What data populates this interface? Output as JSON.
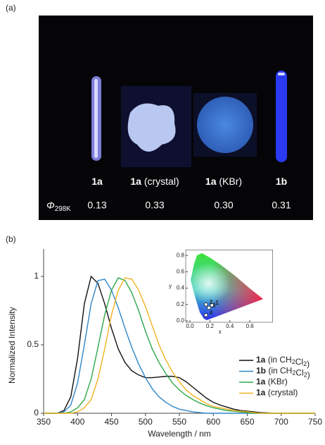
{
  "panel_a": {
    "label": "(a)",
    "samples": [
      "1a",
      "1a (crystal)",
      "1a (KBr)",
      "1b"
    ],
    "quantum_yield_label": "Φ298K",
    "quantum_yields": [
      "0.13",
      "0.33",
      "0.30",
      "0.31"
    ]
  },
  "panel_b_label": "(b)",
  "chart_data": [
    {
      "type": "line",
      "x_label": "Wavelength / nm",
      "y_label": "Normalized Intensity",
      "x": [
        350,
        360,
        370,
        380,
        390,
        400,
        410,
        420,
        430,
        440,
        450,
        460,
        470,
        480,
        490,
        500,
        510,
        520,
        530,
        540,
        550,
        560,
        570,
        580,
        590,
        600,
        610,
        620,
        630,
        640,
        650,
        660,
        670,
        680,
        690,
        700,
        710,
        720,
        730,
        740,
        750
      ],
      "xlim": [
        350,
        750
      ],
      "xticks": [
        350,
        400,
        450,
        500,
        550,
        600,
        650,
        700,
        750
      ],
      "ylim": [
        0,
        1.2
      ],
      "yticks": [
        0,
        0.5,
        1
      ],
      "series": [
        {
          "name": "1a (in CH2Cl2)",
          "color": "#111111",
          "values": [
            0,
            0,
            0,
            0.02,
            0.12,
            0.4,
            0.8,
            1,
            0.95,
            0.8,
            0.62,
            0.47,
            0.37,
            0.31,
            0.28,
            0.26,
            0.26,
            0.265,
            0.27,
            0.27,
            0.26,
            0.23,
            0.19,
            0.15,
            0.11,
            0.08,
            0.06,
            0.045,
            0.03,
            0.02,
            0.015,
            0.01,
            0.005,
            0.003,
            0,
            0,
            0,
            0,
            0,
            0,
            0
          ]
        },
        {
          "name": "1b (in CH2Cl2)",
          "color": "#2e86c8",
          "values": [
            0,
            0,
            0,
            0.01,
            0.06,
            0.22,
            0.5,
            0.8,
            0.97,
            0.98,
            0.9,
            0.77,
            0.62,
            0.48,
            0.36,
            0.26,
            0.18,
            0.12,
            0.08,
            0.05,
            0.03,
            0.02,
            0.01,
            0.005,
            0,
            0,
            0,
            0,
            0,
            0,
            0,
            0,
            0,
            0,
            0,
            0,
            0,
            0,
            0,
            0,
            0
          ]
        },
        {
          "name": "1a (KBr)",
          "color": "#2ea84a",
          "values": [
            0,
            0,
            0,
            0,
            0.01,
            0.04,
            0.1,
            0.25,
            0.48,
            0.72,
            0.9,
            0.99,
            0.97,
            0.88,
            0.75,
            0.6,
            0.47,
            0.37,
            0.29,
            0.22,
            0.17,
            0.13,
            0.1,
            0.075,
            0.055,
            0.04,
            0.03,
            0.02,
            0.015,
            0.01,
            0.005,
            0,
            0,
            0,
            0,
            0,
            0,
            0,
            0,
            0,
            0
          ]
        },
        {
          "name": "1a (crystal)",
          "color": "#f0b323",
          "values": [
            0,
            0,
            0,
            0,
            0,
            0.01,
            0.04,
            0.1,
            0.25,
            0.47,
            0.72,
            0.9,
            0.99,
            0.98,
            0.9,
            0.78,
            0.64,
            0.5,
            0.39,
            0.3,
            0.23,
            0.17,
            0.13,
            0.1,
            0.07,
            0.05,
            0.04,
            0.03,
            0.02,
            0.015,
            0.01,
            0.005,
            0,
            0,
            0,
            0,
            0,
            0,
            0,
            0,
            0
          ]
        }
      ]
    },
    {
      "type": "scatter",
      "x_label": "x",
      "y_label": "y",
      "categories": [
        "1",
        "2",
        "3",
        "4"
      ],
      "x": [
        0.22,
        0.16,
        0.19,
        0.16
      ],
      "values": [
        0.19,
        0.2,
        0.16,
        0.07
      ],
      "xlim": [
        0,
        0.8
      ],
      "ylim": [
        0,
        0.85
      ],
      "xticks": [
        {
          "value": 0,
          "label": "0.0"
        },
        {
          "value": 0.2,
          "label": "0.2"
        },
        {
          "value": 0.4,
          "label": "0.4"
        },
        {
          "value": 0.6,
          "label": "0.6"
        }
      ],
      "yticks": [
        {
          "value": 0,
          "label": "0.0"
        },
        {
          "value": 0.2,
          "label": "0.2"
        },
        {
          "value": 0.4,
          "label": "0.4"
        },
        {
          "value": 0.6,
          "label": "0.6"
        },
        {
          "value": 0.8,
          "label": "0.8"
        }
      ]
    }
  ]
}
